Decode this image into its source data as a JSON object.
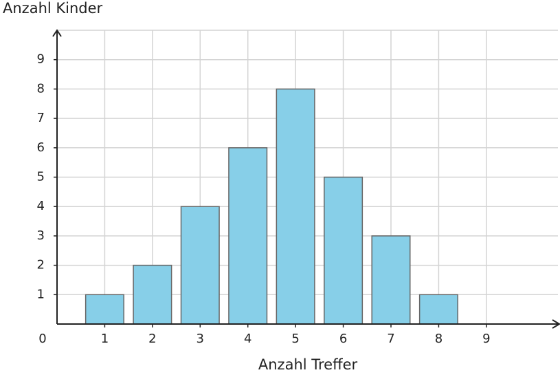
{
  "chart_data": {
    "type": "bar",
    "y_label": "Anzahl Kinder",
    "x_label": "Anzahl Treffer",
    "x": [
      1,
      2,
      3,
      4,
      5,
      6,
      7,
      8
    ],
    "values": [
      1,
      2,
      4,
      6,
      8,
      5,
      3,
      1
    ],
    "color": "#87cfe8",
    "xlim": [
      0,
      10.5
    ],
    "xticks": [
      0,
      1,
      2,
      3,
      4,
      5,
      6,
      7,
      8,
      9
    ],
    "ylim": [
      0,
      10
    ],
    "yticks": [
      1,
      2,
      3,
      4,
      5,
      6,
      7,
      8,
      9
    ],
    "grid": true
  }
}
